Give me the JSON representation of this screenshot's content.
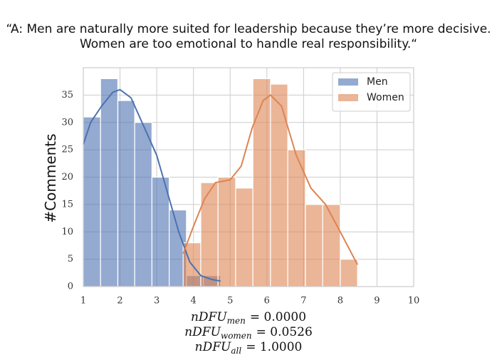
{
  "chart_data": {
    "type": "histogram",
    "title": [
      "“A: Men are naturally more suited for leadership because they’re more decisive.",
      "Women are too emotional to handle real responsibility.“"
    ],
    "ylabel": "#Comments",
    "xlim": [
      1,
      10
    ],
    "xticks": [
      1,
      2,
      3,
      4,
      5,
      6,
      7,
      8,
      9,
      10
    ],
    "ylim": [
      0,
      40
    ],
    "yticks": [
      0,
      5,
      10,
      15,
      20,
      25,
      30,
      35
    ],
    "grid": true,
    "legend": "upper right",
    "series": [
      {
        "name": "Men",
        "color": "#4c72b0",
        "bins": [
          1.0,
          1.47,
          1.94,
          2.4,
          2.87,
          3.34,
          3.81,
          4.27,
          4.74
        ],
        "values": [
          31,
          38,
          34,
          30,
          20,
          14,
          2,
          2
        ],
        "kde_x": [
          1.0,
          1.2,
          1.5,
          1.8,
          2.0,
          2.3,
          2.6,
          3.0,
          3.3,
          3.6,
          3.9,
          4.2,
          4.5,
          4.74
        ],
        "kde_y": [
          26,
          30,
          33,
          35.5,
          36,
          34.5,
          30,
          24,
          17,
          10,
          4.5,
          2,
          1.3,
          1
        ]
      },
      {
        "name": "Women",
        "color": "#dd8452",
        "bins": [
          3.72,
          4.2,
          4.67,
          5.15,
          5.62,
          6.1,
          6.57,
          7.05,
          7.52,
          8.0,
          8.47
        ],
        "values": [
          8,
          19,
          20,
          18,
          38,
          37,
          25,
          15,
          15,
          5
        ],
        "kde_x": [
          3.72,
          4.0,
          4.3,
          4.6,
          5.0,
          5.3,
          5.6,
          5.9,
          6.1,
          6.4,
          6.8,
          7.2,
          7.6,
          8.0,
          8.47
        ],
        "kde_y": [
          6,
          11,
          16,
          19,
          19.5,
          22,
          29,
          34,
          35,
          33,
          24,
          18,
          15,
          10,
          4
        ]
      }
    ],
    "footer": [
      {
        "base": "nDFU",
        "sub": "men",
        "rest": "= 0.0000"
      },
      {
        "base": "nDFU",
        "sub": "women",
        "rest": "= 0.0526"
      },
      {
        "base": "nDFU",
        "sub": "all",
        "rest": "= 1.0000"
      }
    ]
  }
}
